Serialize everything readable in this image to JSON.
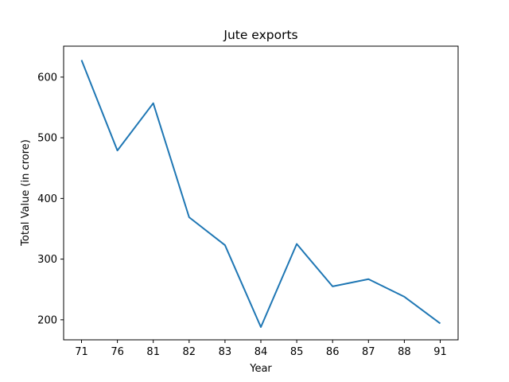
{
  "chart_data": {
    "type": "line",
    "title": "Jute exports",
    "xlabel": "Year",
    "ylabel": "Total Value (in crore)",
    "categories": [
      "71",
      "76",
      "81",
      "82",
      "83",
      "84",
      "85",
      "86",
      "87",
      "88",
      "91"
    ],
    "series": [
      {
        "values": [
          628,
          479,
          557,
          369,
          323,
          188,
          325,
          255,
          267,
          238,
          194
        ],
        "color": "#1f77b4"
      }
    ],
    "yticks": [
      200,
      300,
      400,
      500,
      600
    ],
    "ylim": [
      167,
      651
    ],
    "grid": false,
    "legend": "none"
  }
}
